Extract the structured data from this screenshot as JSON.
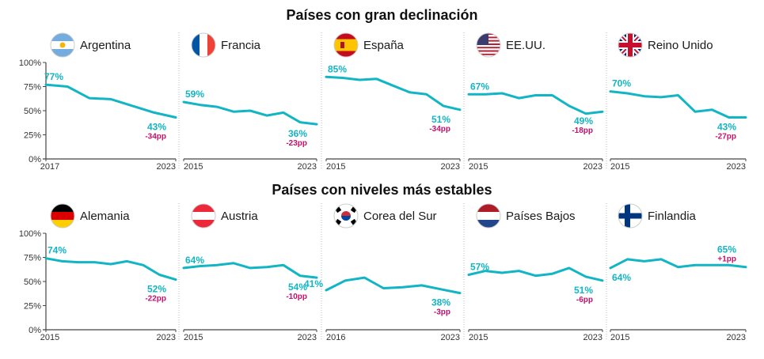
{
  "titles": {
    "top": "Países con gran declinación",
    "bottom": "Países con niveles más estables"
  },
  "colors": {
    "line": "#12b5c4",
    "delta": "#c2126b",
    "axis": "#444444",
    "divider": "#bbbbbb"
  },
  "y_ticks": [
    "100%",
    "75%",
    "50%",
    "25%",
    "0%"
  ],
  "chart_data": [
    {
      "type": "line",
      "title": "Argentina",
      "flag": "flag-argentina-icon",
      "ylim": [
        0,
        100
      ],
      "x": [
        2017,
        2018,
        2019,
        2020,
        2021,
        2022,
        2023
      ],
      "values": [
        77,
        75,
        63,
        62,
        55,
        48,
        43
      ],
      "x_ticks": [
        "2017",
        "2023"
      ],
      "start_label": "77%",
      "end_label": "43%",
      "delta_label": "-34pp"
    },
    {
      "type": "line",
      "title": "Francia",
      "flag": "flag-france-icon",
      "ylim": [
        0,
        100
      ],
      "x": [
        2015,
        2016,
        2017,
        2018,
        2019,
        2020,
        2021,
        2022,
        2023
      ],
      "values": [
        59,
        56,
        54,
        49,
        50,
        45,
        48,
        38,
        36
      ],
      "x_ticks": [
        "2015",
        "2023"
      ],
      "start_label": "59%",
      "end_label": "36%",
      "delta_label": "-23pp"
    },
    {
      "type": "line",
      "title": "España",
      "flag": "flag-spain-icon",
      "ylim": [
        0,
        100
      ],
      "x": [
        2015,
        2016,
        2017,
        2018,
        2019,
        2020,
        2021,
        2022,
        2023
      ],
      "values": [
        85,
        84,
        82,
        83,
        76,
        69,
        67,
        55,
        51
      ],
      "x_ticks": [
        "2015",
        "2023"
      ],
      "start_label": "85%",
      "end_label": "51%",
      "delta_label": "-34pp"
    },
    {
      "type": "line",
      "title": "EE.UU.",
      "flag": "flag-usa-icon",
      "ylim": [
        0,
        100
      ],
      "x": [
        2015,
        2016,
        2017,
        2018,
        2019,
        2020,
        2021,
        2022,
        2023
      ],
      "values": [
        67,
        67,
        68,
        63,
        66,
        66,
        55,
        47,
        49
      ],
      "x_ticks": [
        "2015",
        "2023"
      ],
      "start_label": "67%",
      "end_label": "49%",
      "delta_label": "-18pp"
    },
    {
      "type": "line",
      "title": "Reino Unido",
      "flag": "flag-uk-icon",
      "ylim": [
        0,
        100
      ],
      "x": [
        2015,
        2016,
        2017,
        2018,
        2019,
        2020,
        2021,
        2022,
        2023
      ],
      "values": [
        70,
        68,
        65,
        64,
        66,
        49,
        51,
        43,
        43
      ],
      "x_ticks": [
        "2015",
        "2023"
      ],
      "start_label": "70%",
      "end_label": "43%",
      "delta_label": "-27pp"
    },
    {
      "type": "line",
      "title": "Alemania",
      "flag": "flag-germany-icon",
      "ylim": [
        0,
        100
      ],
      "x": [
        2015,
        2016,
        2017,
        2018,
        2019,
        2020,
        2021,
        2022,
        2023
      ],
      "values": [
        74,
        71,
        70,
        70,
        68,
        71,
        67,
        57,
        52
      ],
      "x_ticks": [
        "2015",
        "2023"
      ],
      "start_label": "74%",
      "end_label": "52%",
      "delta_label": "-22pp"
    },
    {
      "type": "line",
      "title": "Austria",
      "flag": "flag-austria-icon",
      "ylim": [
        0,
        100
      ],
      "x": [
        2015,
        2016,
        2017,
        2018,
        2019,
        2020,
        2021,
        2022,
        2023
      ],
      "values": [
        64,
        66,
        67,
        69,
        64,
        65,
        67,
        56,
        54
      ],
      "x_ticks": [
        "2015",
        "2023"
      ],
      "start_label": "64%",
      "end_label": "54%",
      "delta_label": "-10pp"
    },
    {
      "type": "line",
      "title": "Corea del Sur",
      "flag": "flag-south-korea-icon",
      "ylim": [
        0,
        100
      ],
      "x": [
        2016,
        2017,
        2018,
        2019,
        2020,
        2021,
        2022,
        2023
      ],
      "values": [
        41,
        51,
        54,
        43,
        44,
        46,
        42,
        38
      ],
      "x_ticks": [
        "2016",
        "2023"
      ],
      "start_label": "41%",
      "end_label": "38%",
      "delta_label": "-3pp"
    },
    {
      "type": "line",
      "title": "Países Bajos",
      "flag": "flag-netherlands-icon",
      "ylim": [
        0,
        100
      ],
      "x": [
        2015,
        2016,
        2017,
        2018,
        2019,
        2020,
        2021,
        2022,
        2023
      ],
      "values": [
        57,
        61,
        59,
        61,
        56,
        58,
        64,
        55,
        51
      ],
      "x_ticks": [
        "2015",
        "2023"
      ],
      "start_label": "57%",
      "end_label": "51%",
      "delta_label": "-6pp"
    },
    {
      "type": "line",
      "title": "Finlandia",
      "flag": "flag-finland-icon",
      "ylim": [
        0,
        100
      ],
      "x": [
        2015,
        2016,
        2017,
        2018,
        2019,
        2020,
        2021,
        2022,
        2023
      ],
      "values": [
        64,
        73,
        71,
        73,
        65,
        67,
        67,
        67,
        65
      ],
      "x_ticks": [
        "2015",
        "2023"
      ],
      "start_label": "64%",
      "end_label": "65%",
      "delta_label": "+1pp"
    }
  ]
}
